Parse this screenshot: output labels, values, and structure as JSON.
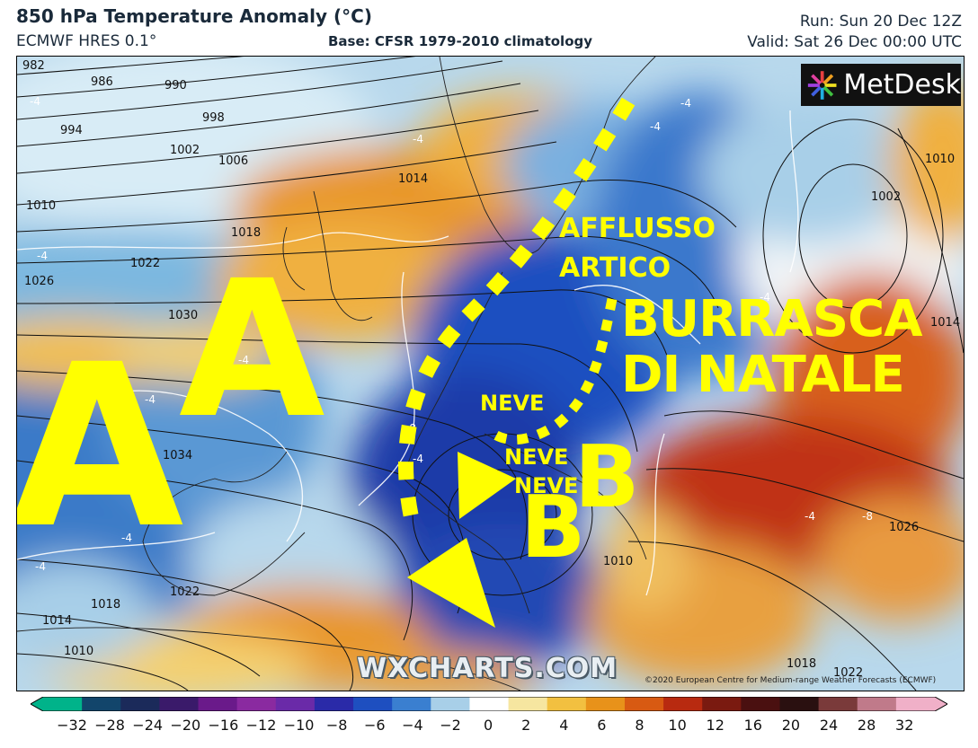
{
  "header": {
    "title": "850 hPa Temperature Anomaly (°C)",
    "model": "ECMWF HRES 0.1°",
    "base": "Base: CFSR 1979-2010 climatology",
    "run": "Run: Sun 20 Dec 12Z",
    "valid": "Valid: Sat 26 Dec 00:00 UTC"
  },
  "logo": {
    "text": "MetDesk"
  },
  "watermark": "WXCHARTS.COM",
  "copyright": "©2020 European Centre for Medium-range Weather Forecasts (ECMWF)",
  "annotations": {
    "high_1": "A",
    "high_2": "A",
    "low_1": "B",
    "low_2": "B",
    "arctic_line1": "AFFLUSSO",
    "arctic_line2": "ARTICO",
    "storm_line1": "BURRASCA",
    "storm_line2": "DI NATALE",
    "snow_1": "NEVE",
    "snow_2": "NEVE",
    "snow_3": "NEVE",
    "annotation_color": "#ffff00"
  },
  "isobars": {
    "labels": [
      "982",
      "986",
      "990",
      "994",
      "998",
      "1002",
      "1006",
      "1010",
      "1014",
      "1018",
      "1022",
      "1026",
      "1030",
      "1034",
      "1010",
      "1002",
      "1014",
      "1018",
      "1022",
      "1014",
      "1010",
      "1010",
      "1026",
      "1018",
      "1022"
    ]
  },
  "anomaly_labels": [
    "-4",
    "-4",
    "-4",
    "-4",
    "-4",
    "-4",
    "-4",
    "-4",
    "-8",
    "-4",
    "-4",
    "-8",
    "-4",
    "-4"
  ],
  "colorbar": {
    "ticks": [
      "−32",
      "−28",
      "−24",
      "−20",
      "−16",
      "−12",
      "−10",
      "−8",
      "−6",
      "−4",
      "−2",
      "0",
      "2",
      "4",
      "6",
      "8",
      "10",
      "12",
      "16",
      "20",
      "24",
      "28",
      "32"
    ],
    "colors": [
      "#00b38a",
      "#12456b",
      "#1b2a5a",
      "#3a1a6a",
      "#6a1a8a",
      "#8a2aa0",
      "#6a2aa8",
      "#2a2aa8",
      "#1e4fc0",
      "#3a7fd0",
      "#a8cfe8",
      "#ffffff",
      "#f6e6a0",
      "#f2c040",
      "#e8921a",
      "#d85a12",
      "#b82a10",
      "#7a1a10",
      "#4a1010",
      "#2a1010",
      "#7a3a3a",
      "#c07a8a",
      "#f0b0c8"
    ]
  }
}
